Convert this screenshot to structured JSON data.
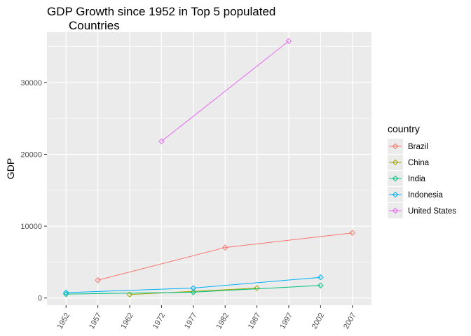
{
  "chart_data": {
    "type": "line",
    "title_lines": [
      "GDP Growth since 1952 in Top 5 populated",
      "Countries"
    ],
    "xlabel": "",
    "ylabel": "GDP",
    "x_ticks": [
      "1952",
      "1957",
      "1962",
      "1972",
      "1977",
      "1982",
      "1987",
      "1997",
      "2002",
      "2007"
    ],
    "y_ticks": [
      0,
      10000,
      20000,
      30000
    ],
    "ylim": [
      -1000,
      37000
    ],
    "grid": true,
    "legend_title": "country",
    "legend_position": "right",
    "series": [
      {
        "name": "Brazil",
        "color": "#F8766D",
        "points": [
          {
            "x": "1957",
            "y": 2487
          },
          {
            "x": "1982",
            "y": 7031
          },
          {
            "x": "2007",
            "y": 9066
          }
        ]
      },
      {
        "name": "China",
        "color": "#A3A500",
        "points": [
          {
            "x": "1962",
            "y": 488
          },
          {
            "x": "1987",
            "y": 1379
          }
        ]
      },
      {
        "name": "India",
        "color": "#00BF7D",
        "points": [
          {
            "x": "1952",
            "y": 547
          },
          {
            "x": "1977",
            "y": 813
          },
          {
            "x": "2002",
            "y": 1747
          }
        ]
      },
      {
        "name": "Indonesia",
        "color": "#00B0F6",
        "points": [
          {
            "x": "1952",
            "y": 750
          },
          {
            "x": "1977",
            "y": 1383
          },
          {
            "x": "2002",
            "y": 2874
          }
        ]
      },
      {
        "name": "United States",
        "color": "#E76BF3",
        "points": [
          {
            "x": "1972",
            "y": 21806
          },
          {
            "x": "1997",
            "y": 35767
          }
        ]
      }
    ]
  }
}
